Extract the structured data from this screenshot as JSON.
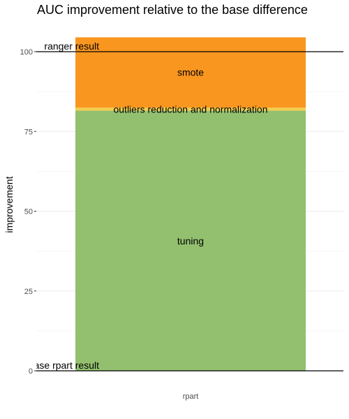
{
  "chart_data": {
    "type": "bar",
    "stacked": true,
    "title": "AUC improvement relative to the base difference",
    "xlabel": "",
    "ylabel": "improvement",
    "categories": [
      "rpart"
    ],
    "ylim": [
      0,
      100
    ],
    "yticks": [
      0,
      25,
      50,
      75,
      100
    ],
    "grid": true,
    "segments": [
      {
        "name": "tuning",
        "value": 81.5,
        "color": "#93c06f"
      },
      {
        "name": "outliers reduction and normalization",
        "value": 1.0,
        "color": "#f2cc50"
      },
      {
        "name": "smote",
        "value": 22.0,
        "color": "#f9961f"
      }
    ],
    "reference_lines": [
      {
        "label": "base rpart result",
        "y": 0
      },
      {
        "label": "ranger result",
        "y": 100
      }
    ]
  }
}
